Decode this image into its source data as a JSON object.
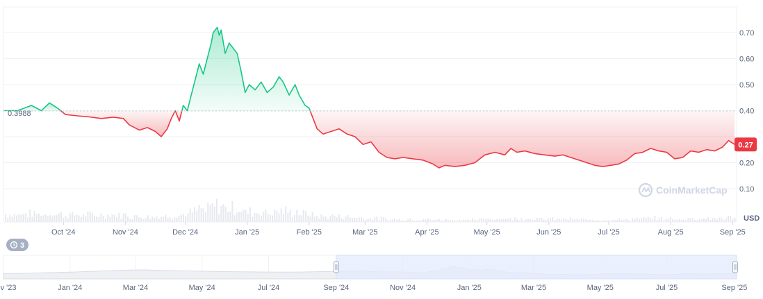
{
  "chart_data": {
    "type": "line",
    "currency_unit": "USD",
    "reference_price": 0.3988,
    "reference_label": "0.3988",
    "current_price": 0.27,
    "current_label": "0.27",
    "y_ticks": [
      "0.70",
      "0.60",
      "0.50",
      "0.40",
      "0.20",
      "0.10"
    ],
    "y_tick_values": [
      0.7,
      0.6,
      0.5,
      0.4,
      0.2,
      0.1
    ],
    "ylim": [
      0.0,
      0.8
    ],
    "x_ticks": [
      "Oct '24",
      "Nov '24",
      "Dec '24",
      "Jan '25",
      "Feb '25",
      "Mar '25",
      "Apr '25",
      "May '25",
      "Jun '25",
      "Jul '25",
      "Aug '25",
      "Sep '25"
    ],
    "x_tick_dates": [
      "2024-10-01",
      "2024-11-01",
      "2024-12-01",
      "2025-01-01",
      "2025-02-01",
      "2025-03-01",
      "2025-04-01",
      "2025-05-01",
      "2025-06-01",
      "2025-07-01",
      "2025-08-01",
      "2025-09-01"
    ],
    "xlim": [
      "2024-09-01",
      "2025-09-03"
    ],
    "series": [
      {
        "points": [
          [
            "2024-09-01",
            0.4
          ],
          [
            "2024-09-08",
            0.4
          ],
          [
            "2024-09-15",
            0.42
          ],
          [
            "2024-09-20",
            0.4
          ],
          [
            "2024-09-24",
            0.43
          ],
          [
            "2024-09-28",
            0.41
          ],
          [
            "2024-10-02",
            0.385
          ],
          [
            "2024-10-08",
            0.38
          ],
          [
            "2024-10-14",
            0.376
          ],
          [
            "2024-10-20",
            0.37
          ],
          [
            "2024-10-26",
            0.375
          ],
          [
            "2024-10-31",
            0.37
          ],
          [
            "2024-11-03",
            0.345
          ],
          [
            "2024-11-08",
            0.325
          ],
          [
            "2024-11-12",
            0.335
          ],
          [
            "2024-11-16",
            0.32
          ],
          [
            "2024-11-19",
            0.3
          ],
          [
            "2024-11-22",
            0.33
          ],
          [
            "2024-11-24",
            0.37
          ],
          [
            "2024-11-26",
            0.4
          ],
          [
            "2024-11-28",
            0.36
          ],
          [
            "2024-11-30",
            0.42
          ],
          [
            "2024-12-02",
            0.4
          ],
          [
            "2024-12-04",
            0.46
          ],
          [
            "2024-12-06",
            0.52
          ],
          [
            "2024-12-08",
            0.58
          ],
          [
            "2024-12-10",
            0.54
          ],
          [
            "2024-12-12",
            0.6
          ],
          [
            "2024-12-14",
            0.66
          ],
          [
            "2024-12-15",
            0.7
          ],
          [
            "2024-12-17",
            0.72
          ],
          [
            "2024-12-18",
            0.69
          ],
          [
            "2024-12-19",
            0.71
          ],
          [
            "2024-12-21",
            0.62
          ],
          [
            "2024-12-23",
            0.66
          ],
          [
            "2024-12-25",
            0.64
          ],
          [
            "2024-12-27",
            0.62
          ],
          [
            "2024-12-29",
            0.55
          ],
          [
            "2024-12-31",
            0.47
          ],
          [
            "2025-01-02",
            0.5
          ],
          [
            "2025-01-05",
            0.48
          ],
          [
            "2025-01-08",
            0.51
          ],
          [
            "2025-01-11",
            0.47
          ],
          [
            "2025-01-14",
            0.49
          ],
          [
            "2025-01-17",
            0.53
          ],
          [
            "2025-01-19",
            0.51
          ],
          [
            "2025-01-22",
            0.46
          ],
          [
            "2025-01-25",
            0.5
          ],
          [
            "2025-01-27",
            0.46
          ],
          [
            "2025-01-30",
            0.42
          ],
          [
            "2025-02-01",
            0.41
          ],
          [
            "2025-02-03",
            0.37
          ],
          [
            "2025-02-05",
            0.33
          ],
          [
            "2025-02-08",
            0.31
          ],
          [
            "2025-02-12",
            0.32
          ],
          [
            "2025-02-16",
            0.33
          ],
          [
            "2025-02-20",
            0.31
          ],
          [
            "2025-02-24",
            0.3
          ],
          [
            "2025-02-28",
            0.27
          ],
          [
            "2025-03-04",
            0.28
          ],
          [
            "2025-03-08",
            0.24
          ],
          [
            "2025-03-12",
            0.22
          ],
          [
            "2025-03-16",
            0.215
          ],
          [
            "2025-03-20",
            0.22
          ],
          [
            "2025-03-25",
            0.215
          ],
          [
            "2025-03-30",
            0.21
          ],
          [
            "2025-04-04",
            0.195
          ],
          [
            "2025-04-07",
            0.18
          ],
          [
            "2025-04-10",
            0.19
          ],
          [
            "2025-04-15",
            0.185
          ],
          [
            "2025-04-20",
            0.19
          ],
          [
            "2025-04-25",
            0.2
          ],
          [
            "2025-04-30",
            0.23
          ],
          [
            "2025-05-05",
            0.24
          ],
          [
            "2025-05-10",
            0.23
          ],
          [
            "2025-05-13",
            0.255
          ],
          [
            "2025-05-16",
            0.24
          ],
          [
            "2025-05-20",
            0.245
          ],
          [
            "2025-05-25",
            0.235
          ],
          [
            "2025-05-30",
            0.23
          ],
          [
            "2025-06-04",
            0.225
          ],
          [
            "2025-06-08",
            0.23
          ],
          [
            "2025-06-12",
            0.22
          ],
          [
            "2025-06-16",
            0.21
          ],
          [
            "2025-06-20",
            0.2
          ],
          [
            "2025-06-24",
            0.19
          ],
          [
            "2025-06-28",
            0.185
          ],
          [
            "2025-07-02",
            0.19
          ],
          [
            "2025-07-06",
            0.195
          ],
          [
            "2025-07-10",
            0.21
          ],
          [
            "2025-07-14",
            0.235
          ],
          [
            "2025-07-18",
            0.24
          ],
          [
            "2025-07-22",
            0.255
          ],
          [
            "2025-07-26",
            0.245
          ],
          [
            "2025-07-30",
            0.24
          ],
          [
            "2025-08-03",
            0.215
          ],
          [
            "2025-08-07",
            0.22
          ],
          [
            "2025-08-11",
            0.245
          ],
          [
            "2025-08-15",
            0.24
          ],
          [
            "2025-08-19",
            0.25
          ],
          [
            "2025-08-23",
            0.245
          ],
          [
            "2025-08-27",
            0.26
          ],
          [
            "2025-08-30",
            0.285
          ],
          [
            "2025-09-02",
            0.27
          ]
        ]
      }
    ],
    "navigator": {
      "x_ticks": [
        "Nov '23",
        "Jan '24",
        "Mar '24",
        "May '24",
        "Jul '24",
        "Sep '24",
        "Nov '24",
        "Jan '25",
        "Mar '25",
        "May '25",
        "Jul '25",
        "Sep '25"
      ],
      "x_tick_dates": [
        "2023-11-01",
        "2024-01-01",
        "2024-03-01",
        "2024-05-01",
        "2024-07-01",
        "2024-09-01",
        "2024-11-01",
        "2025-01-01",
        "2025-03-01",
        "2025-05-01",
        "2025-07-01",
        "2025-09-01"
      ],
      "xlim": [
        "2023-11-01",
        "2025-09-03"
      ],
      "selected_range": [
        "2024-09-01",
        "2025-09-03"
      ]
    },
    "grid": true,
    "above_color": "#16c784",
    "below_color": "#ea3943",
    "nav_selection_color": "#e4ebfd"
  },
  "watermark": {
    "text": "CoinMarketCap",
    "icon": "coinmarketcap-logo"
  },
  "history_badge": {
    "icon": "history-icon",
    "count": "3"
  }
}
